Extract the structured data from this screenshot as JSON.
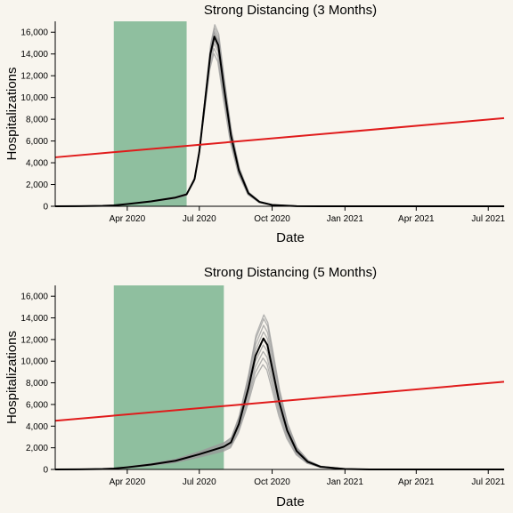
{
  "chart_data": [
    {
      "type": "line",
      "title": "Strong Distancing (3 Months)",
      "xlabel": "Date",
      "ylabel": "Hospitalizations",
      "xlim": [
        "2020-01-01",
        "2021-07-21"
      ],
      "ylim": [
        0,
        17000
      ],
      "x_ticks": [
        "2020-04-01",
        "2020-07-01",
        "2020-10-01",
        "2021-01-01",
        "2021-04-01",
        "2021-07-01"
      ],
      "x_tick_labels": [
        "Apr 2020",
        "Jul 2020",
        "Oct 2020",
        "Jan 2021",
        "Apr 2021",
        "Jul 2021"
      ],
      "y_ticks": [
        0,
        2000,
        4000,
        6000,
        8000,
        10000,
        12000,
        14000,
        16000
      ],
      "y_tick_labels": [
        "0",
        "2,000",
        "4,000",
        "6,000",
        "8,000",
        "10,000",
        "12,000",
        "14,000",
        "16,000"
      ],
      "grid": false,
      "distancing_period": [
        "2020-03-15",
        "2020-06-15"
      ],
      "distancing_color": "#8fbf9f",
      "capacity_line": {
        "x": [
          "2020-01-01",
          "2021-07-21"
        ],
        "y": [
          4500,
          8100
        ],
        "color": "#e01b1b"
      },
      "series_color": "#000000",
      "ensemble_color": "#9a9a9a",
      "mean_series": {
        "x": [
          "2020-01-01",
          "2020-02-01",
          "2020-03-01",
          "2020-03-15",
          "2020-04-01",
          "2020-05-01",
          "2020-06-01",
          "2020-06-15",
          "2020-06-25",
          "2020-07-01",
          "2020-07-08",
          "2020-07-15",
          "2020-07-20",
          "2020-07-25",
          "2020-08-01",
          "2020-08-10",
          "2020-08-20",
          "2020-09-01",
          "2020-09-15",
          "2020-10-01",
          "2020-11-01",
          "2020-12-01",
          "2021-01-01",
          "2021-04-01",
          "2021-07-21"
        ],
        "y": [
          0,
          10,
          40,
          80,
          200,
          450,
          800,
          1100,
          2500,
          5000,
          9500,
          14000,
          15600,
          14800,
          11000,
          6500,
          3300,
          1200,
          400,
          120,
          15,
          3,
          0,
          0,
          0
        ]
      },
      "ensemble_scales": [
        0.9,
        0.93,
        0.96,
        0.98,
        1.0,
        1.02,
        1.03,
        1.05,
        1.07
      ]
    },
    {
      "type": "line",
      "title": "Strong Distancing (5 Months)",
      "xlabel": "Date",
      "ylabel": "Hospitalizations",
      "xlim": [
        "2020-01-01",
        "2021-07-21"
      ],
      "ylim": [
        0,
        17000
      ],
      "x_ticks": [
        "2020-04-01",
        "2020-07-01",
        "2020-10-01",
        "2021-01-01",
        "2021-04-01",
        "2021-07-01"
      ],
      "x_tick_labels": [
        "Apr 2020",
        "Jul 2020",
        "Oct 2020",
        "Jan 2021",
        "Apr 2021",
        "Jul 2021"
      ],
      "y_ticks": [
        0,
        2000,
        4000,
        6000,
        8000,
        10000,
        12000,
        14000,
        16000
      ],
      "y_tick_labels": [
        "0",
        "2,000",
        "4,000",
        "6,000",
        "8,000",
        "10,000",
        "12,000",
        "14,000",
        "16,000"
      ],
      "grid": false,
      "distancing_period": [
        "2020-03-15",
        "2020-08-01"
      ],
      "distancing_color": "#8fbf9f",
      "capacity_line": {
        "x": [
          "2020-01-01",
          "2021-07-21"
        ],
        "y": [
          4500,
          8100
        ],
        "color": "#e01b1b"
      },
      "series_color": "#000000",
      "ensemble_color": "#9a9a9a",
      "mean_series": {
        "x": [
          "2020-01-01",
          "2020-02-01",
          "2020-03-01",
          "2020-03-15",
          "2020-04-01",
          "2020-05-01",
          "2020-06-01",
          "2020-07-01",
          "2020-08-01",
          "2020-08-10",
          "2020-08-20",
          "2020-09-01",
          "2020-09-10",
          "2020-09-20",
          "2020-09-25",
          "2020-10-01",
          "2020-10-10",
          "2020-10-20",
          "2020-11-01",
          "2020-11-15",
          "2020-12-01",
          "2021-01-01",
          "2021-02-01",
          "2021-04-01",
          "2021-07-21"
        ],
        "y": [
          0,
          10,
          40,
          80,
          200,
          450,
          800,
          1400,
          2100,
          2500,
          4200,
          7500,
          10500,
          12100,
          11500,
          9400,
          6200,
          3600,
          1700,
          700,
          250,
          40,
          5,
          0,
          0
        ]
      },
      "ensemble_scales": [
        0.8,
        0.85,
        0.9,
        0.95,
        1.0,
        1.05,
        1.1,
        1.15,
        1.18
      ]
    }
  ]
}
